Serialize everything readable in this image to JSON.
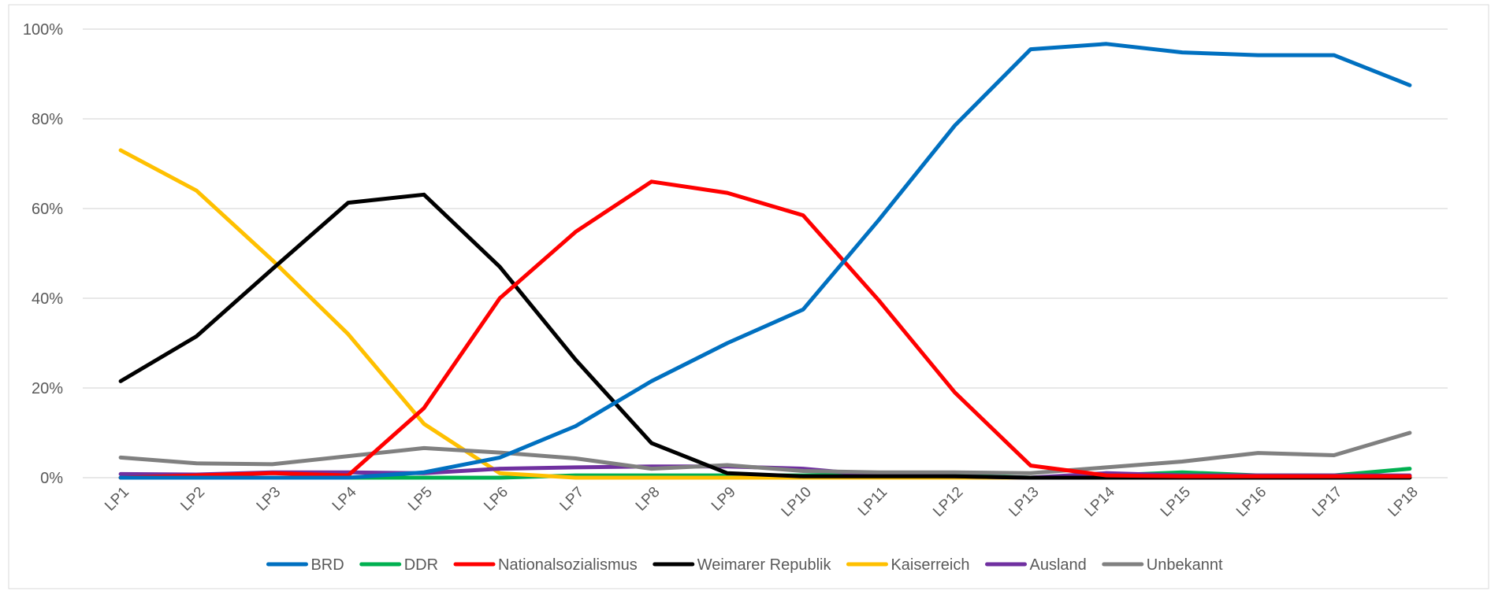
{
  "chart_data": {
    "type": "line",
    "title": "",
    "xlabel": "",
    "ylabel": "",
    "ylim": [
      0,
      1
    ],
    "y_ticks": [
      "0%",
      "20%",
      "40%",
      "60%",
      "80%",
      "100%"
    ],
    "grid": true,
    "legend_position": "bottom",
    "categories": [
      "LP1",
      "LP2",
      "LP3",
      "LP4",
      "LP5",
      "LP6",
      "LP7",
      "LP8",
      "LP9",
      "LP10",
      "LP11",
      "LP12",
      "LP13",
      "LP14",
      "LP15",
      "LP16",
      "LP17",
      "LP18"
    ],
    "series": [
      {
        "name": "BRD",
        "color": "#0070C0",
        "values": [
          0.0,
          0.0,
          0.0,
          0.0,
          0.012,
          0.045,
          0.115,
          0.215,
          0.3,
          0.375,
          0.575,
          0.785,
          0.955,
          0.967,
          0.948,
          0.942,
          0.942,
          0.875
        ]
      },
      {
        "name": "DDR",
        "color": "#00B050",
        "values": [
          0.0,
          0.0,
          0.0,
          0.0,
          0.0,
          0.0,
          0.005,
          0.005,
          0.005,
          0.005,
          0.008,
          0.005,
          0.0,
          0.005,
          0.012,
          0.005,
          0.005,
          0.02
        ]
      },
      {
        "name": "Nationalsozialismus",
        "color": "#FF0000",
        "values": [
          0.0,
          0.005,
          0.01,
          0.005,
          0.155,
          0.4,
          0.548,
          0.66,
          0.635,
          0.585,
          0.395,
          0.19,
          0.027,
          0.005,
          0.003,
          0.003,
          0.003,
          0.003
        ]
      },
      {
        "name": "Weimarer Republik",
        "color": "#000000",
        "values": [
          0.215,
          0.315,
          0.465,
          0.613,
          0.631,
          0.47,
          0.263,
          0.077,
          0.01,
          0.003,
          0.003,
          0.003,
          0.0,
          0.0,
          0.0,
          0.0,
          0.0,
          0.0
        ]
      },
      {
        "name": "Kaiserreich",
        "color": "#FFC000",
        "values": [
          0.73,
          0.64,
          0.485,
          0.32,
          0.12,
          0.01,
          0.0,
          0.0,
          0.0,
          0.0,
          0.0,
          0.0,
          0.0,
          0.0,
          0.0,
          0.0,
          0.0,
          0.0
        ]
      },
      {
        "name": "Ausland",
        "color": "#7030A0",
        "values": [
          0.008,
          0.007,
          0.012,
          0.012,
          0.01,
          0.02,
          0.023,
          0.025,
          0.025,
          0.02,
          0.005,
          0.003,
          0.0,
          0.01,
          0.005,
          0.005,
          0.005,
          0.005
        ]
      },
      {
        "name": "Unbekannt",
        "color": "#808080",
        "values": [
          0.045,
          0.032,
          0.03,
          0.048,
          0.066,
          0.056,
          0.043,
          0.02,
          0.028,
          0.015,
          0.012,
          0.012,
          0.01,
          0.023,
          0.036,
          0.055,
          0.05,
          0.1
        ]
      }
    ]
  }
}
